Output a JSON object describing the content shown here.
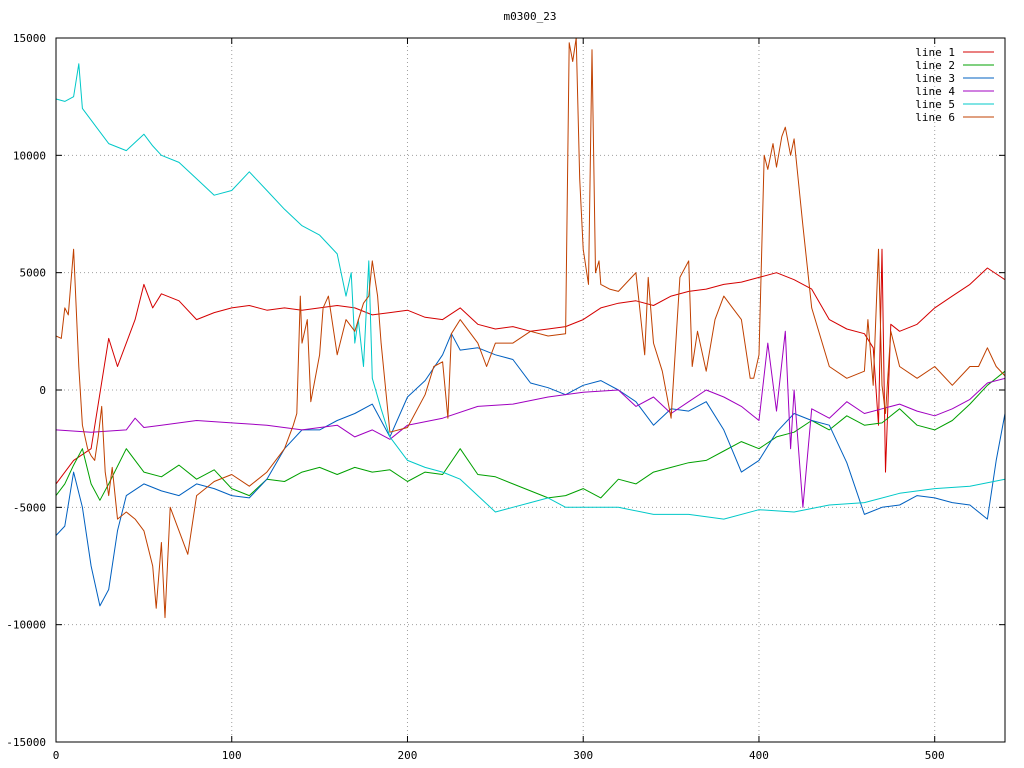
{
  "chart_data": {
    "type": "line",
    "title": "m0300_23",
    "xlabel": "",
    "ylabel": "",
    "xlim": [
      0,
      540
    ],
    "ylim": [
      -15000,
      15000
    ],
    "grid": true,
    "legend_position": "top-right",
    "x_ticks": [
      0,
      100,
      200,
      300,
      400,
      500
    ],
    "y_ticks": [
      -15000,
      -10000,
      -5000,
      0,
      5000,
      10000,
      15000
    ],
    "x_tick_labels": [
      "0",
      "100",
      "200",
      "300",
      "400",
      "500"
    ],
    "y_tick_labels": [
      "-15000",
      "-10000",
      "-5000",
      "0",
      "5000",
      "10000",
      "15000"
    ],
    "series": [
      {
        "name": "line 1",
        "color": "#d40000",
        "x": [
          0,
          10,
          20,
          30,
          35,
          40,
          45,
          50,
          55,
          60,
          70,
          80,
          90,
          100,
          110,
          120,
          130,
          140,
          150,
          160,
          170,
          180,
          190,
          200,
          210,
          220,
          230,
          240,
          250,
          260,
          270,
          280,
          290,
          300,
          310,
          320,
          330,
          340,
          350,
          360,
          370,
          380,
          390,
          400,
          410,
          420,
          430,
          440,
          450,
          460,
          465,
          468,
          470,
          472,
          475,
          480,
          490,
          500,
          510,
          520,
          530,
          540
        ],
        "y": [
          -4000,
          -3000,
          -2500,
          2200,
          1000,
          2000,
          3000,
          4500,
          3500,
          4100,
          3800,
          3000,
          3300,
          3500,
          3600,
          3400,
          3500,
          3400,
          3500,
          3600,
          3500,
          3200,
          3300,
          3400,
          3100,
          3000,
          3500,
          2800,
          2600,
          2700,
          2500,
          2600,
          2700,
          3000,
          3500,
          3700,
          3800,
          3600,
          4000,
          4200,
          4300,
          4500,
          4600,
          4800,
          5000,
          4700,
          4300,
          3000,
          2600,
          2400,
          1800,
          -1500,
          6000,
          -3500,
          2800,
          2500,
          2800,
          3500,
          4000,
          4500,
          5200,
          4700
        ]
      },
      {
        "name": "line 2",
        "color": "#00a000",
        "x": [
          0,
          5,
          10,
          15,
          20,
          25,
          30,
          40,
          50,
          60,
          70,
          80,
          90,
          100,
          110,
          120,
          130,
          140,
          150,
          160,
          170,
          180,
          190,
          200,
          210,
          220,
          230,
          240,
          250,
          260,
          270,
          280,
          290,
          300,
          310,
          320,
          330,
          340,
          350,
          360,
          370,
          380,
          390,
          400,
          410,
          420,
          430,
          440,
          450,
          460,
          470,
          480,
          490,
          500,
          510,
          520,
          530,
          540
        ],
        "y": [
          -4500,
          -4000,
          -3200,
          -2500,
          -4000,
          -4700,
          -4000,
          -2500,
          -3500,
          -3700,
          -3200,
          -3800,
          -3400,
          -4200,
          -4500,
          -3800,
          -3900,
          -3500,
          -3300,
          -3600,
          -3300,
          -3500,
          -3400,
          -3900,
          -3500,
          -3600,
          -2500,
          -3600,
          -3700,
          -4000,
          -4300,
          -4600,
          -4500,
          -4200,
          -4600,
          -3800,
          -4000,
          -3500,
          -3300,
          -3100,
          -3000,
          -2600,
          -2200,
          -2500,
          -2000,
          -1800,
          -1300,
          -1700,
          -1100,
          -1500,
          -1400,
          -800,
          -1500,
          -1700,
          -1300,
          -600,
          200,
          800
        ]
      },
      {
        "name": "line 3",
        "color": "#0060c0",
        "x": [
          0,
          5,
          10,
          15,
          20,
          25,
          30,
          35,
          40,
          50,
          60,
          70,
          80,
          90,
          100,
          110,
          120,
          130,
          140,
          150,
          160,
          170,
          180,
          190,
          200,
          210,
          220,
          225,
          230,
          240,
          250,
          260,
          270,
          280,
          290,
          300,
          310,
          320,
          330,
          340,
          350,
          360,
          370,
          380,
          390,
          400,
          410,
          420,
          430,
          440,
          450,
          460,
          470,
          480,
          490,
          500,
          510,
          520,
          530,
          535,
          540
        ],
        "y": [
          -6200,
          -5800,
          -3500,
          -5000,
          -7500,
          -9200,
          -8500,
          -6000,
          -4500,
          -4000,
          -4300,
          -4500,
          -4000,
          -4200,
          -4500,
          -4600,
          -3800,
          -2500,
          -1700,
          -1700,
          -1300,
          -1000,
          -600,
          -2000,
          -300,
          400,
          1500,
          2400,
          1700,
          1800,
          1500,
          1300,
          300,
          100,
          -200,
          200,
          400,
          0,
          -500,
          -1500,
          -800,
          -900,
          -500,
          -1700,
          -3500,
          -3000,
          -1800,
          -1000,
          -1300,
          -1500,
          -3100,
          -5300,
          -5000,
          -4900,
          -4500,
          -4600,
          -4800,
          -4900,
          -5500,
          -3000,
          -1000
        ]
      },
      {
        "name": "line 4",
        "color": "#a000c0",
        "x": [
          0,
          20,
          40,
          45,
          50,
          60,
          80,
          100,
          120,
          140,
          160,
          170,
          180,
          190,
          200,
          220,
          240,
          260,
          280,
          300,
          320,
          330,
          340,
          350,
          360,
          370,
          380,
          390,
          395,
          400,
          405,
          410,
          415,
          418,
          420,
          425,
          430,
          440,
          450,
          460,
          470,
          480,
          490,
          500,
          510,
          520,
          530,
          540
        ],
        "y": [
          -1700,
          -1800,
          -1700,
          -1200,
          -1600,
          -1500,
          -1300,
          -1400,
          -1500,
          -1700,
          -1500,
          -2000,
          -1700,
          -2100,
          -1500,
          -1200,
          -700,
          -600,
          -300,
          -100,
          0,
          -700,
          -300,
          -1000,
          -500,
          0,
          -300,
          -700,
          -1000,
          -1300,
          2000,
          -900,
          2500,
          -2500,
          0,
          -5000,
          -800,
          -1200,
          -500,
          -1000,
          -800,
          -600,
          -900,
          -1100,
          -800,
          -400,
          300,
          500
        ]
      },
      {
        "name": "line 5",
        "color": "#00c8c8",
        "x": [
          0,
          5,
          10,
          13,
          15,
          20,
          30,
          40,
          50,
          55,
          60,
          70,
          80,
          90,
          100,
          110,
          120,
          130,
          140,
          150,
          160,
          165,
          168,
          170,
          172,
          175,
          178,
          180,
          185,
          190,
          200,
          210,
          220,
          230,
          240,
          250,
          260,
          270,
          280,
          290,
          300,
          320,
          340,
          360,
          380,
          400,
          420,
          440,
          460,
          480,
          500,
          520,
          540
        ],
        "y": [
          12400,
          12300,
          12500,
          13900,
          12000,
          11500,
          10500,
          10200,
          10900,
          10400,
          10000,
          9700,
          9000,
          8300,
          8500,
          9300,
          8500,
          7700,
          7000,
          6600,
          5800,
          4000,
          5000,
          2000,
          3000,
          1000,
          5500,
          500,
          -800,
          -2000,
          -3000,
          -3300,
          -3500,
          -3800,
          -4500,
          -5200,
          -5000,
          -4800,
          -4600,
          -5000,
          -5000,
          -5000,
          -5300,
          -5300,
          -5500,
          -5100,
          -5200,
          -4900,
          -4800,
          -4400,
          -4200,
          -4100,
          -3800
        ]
      },
      {
        "name": "line 6",
        "color": "#c04000",
        "x": [
          0,
          3,
          5,
          7,
          10,
          13,
          15,
          18,
          20,
          22,
          24,
          26,
          28,
          30,
          32,
          35,
          40,
          45,
          50,
          55,
          57,
          60,
          62,
          65,
          70,
          75,
          80,
          90,
          100,
          110,
          120,
          130,
          135,
          137,
          139,
          140,
          143,
          145,
          150,
          152,
          155,
          160,
          165,
          170,
          175,
          178,
          180,
          183,
          185,
          190,
          200,
          210,
          215,
          220,
          223,
          225,
          230,
          235,
          240,
          245,
          250,
          260,
          270,
          280,
          290,
          292,
          294,
          296,
          298,
          300,
          303,
          305,
          307,
          309,
          310,
          315,
          320,
          330,
          335,
          337,
          340,
          345,
          350,
          355,
          360,
          362,
          365,
          370,
          375,
          380,
          385,
          390,
          395,
          397,
          400,
          403,
          405,
          408,
          410,
          413,
          415,
          418,
          420,
          425,
          430,
          440,
          450,
          460,
          462,
          465,
          468,
          470,
          472,
          475,
          480,
          490,
          500,
          510,
          520,
          525,
          530,
          535,
          540
        ],
        "y": [
          2300,
          2200,
          3500,
          3200,
          6000,
          1000,
          -1500,
          -2500,
          -2800,
          -3000,
          -2000,
          -700,
          -3500,
          -4500,
          -3300,
          -5500,
          -5200,
          -5500,
          -6000,
          -7500,
          -9300,
          -6500,
          -9700,
          -5000,
          -6000,
          -7000,
          -4500,
          -3900,
          -3600,
          -4100,
          -3500,
          -2500,
          -1500,
          -1000,
          4000,
          2000,
          3000,
          -500,
          1500,
          3500,
          4000,
          1500,
          3000,
          2500,
          3700,
          4000,
          5500,
          4000,
          2000,
          -1800,
          -1600,
          -200,
          1000,
          1200,
          -1200,
          2400,
          3000,
          2500,
          2000,
          1000,
          2000,
          2000,
          2500,
          2300,
          2400,
          14800,
          14000,
          15000,
          9000,
          6000,
          4500,
          14500,
          5000,
          5500,
          4500,
          4300,
          4200,
          5000,
          1500,
          4800,
          2000,
          800,
          -1200,
          4800,
          5500,
          1000,
          2500,
          800,
          3000,
          4000,
          3500,
          3000,
          500,
          500,
          1500,
          10000,
          9400,
          10500,
          9500,
          10800,
          11200,
          10000,
          10700,
          7000,
          3500,
          1000,
          500,
          800,
          3000,
          200,
          6000,
          200,
          -1000,
          2500,
          1000,
          500,
          1000,
          200,
          1000,
          1000,
          1800,
          1000,
          600
        ]
      }
    ]
  }
}
